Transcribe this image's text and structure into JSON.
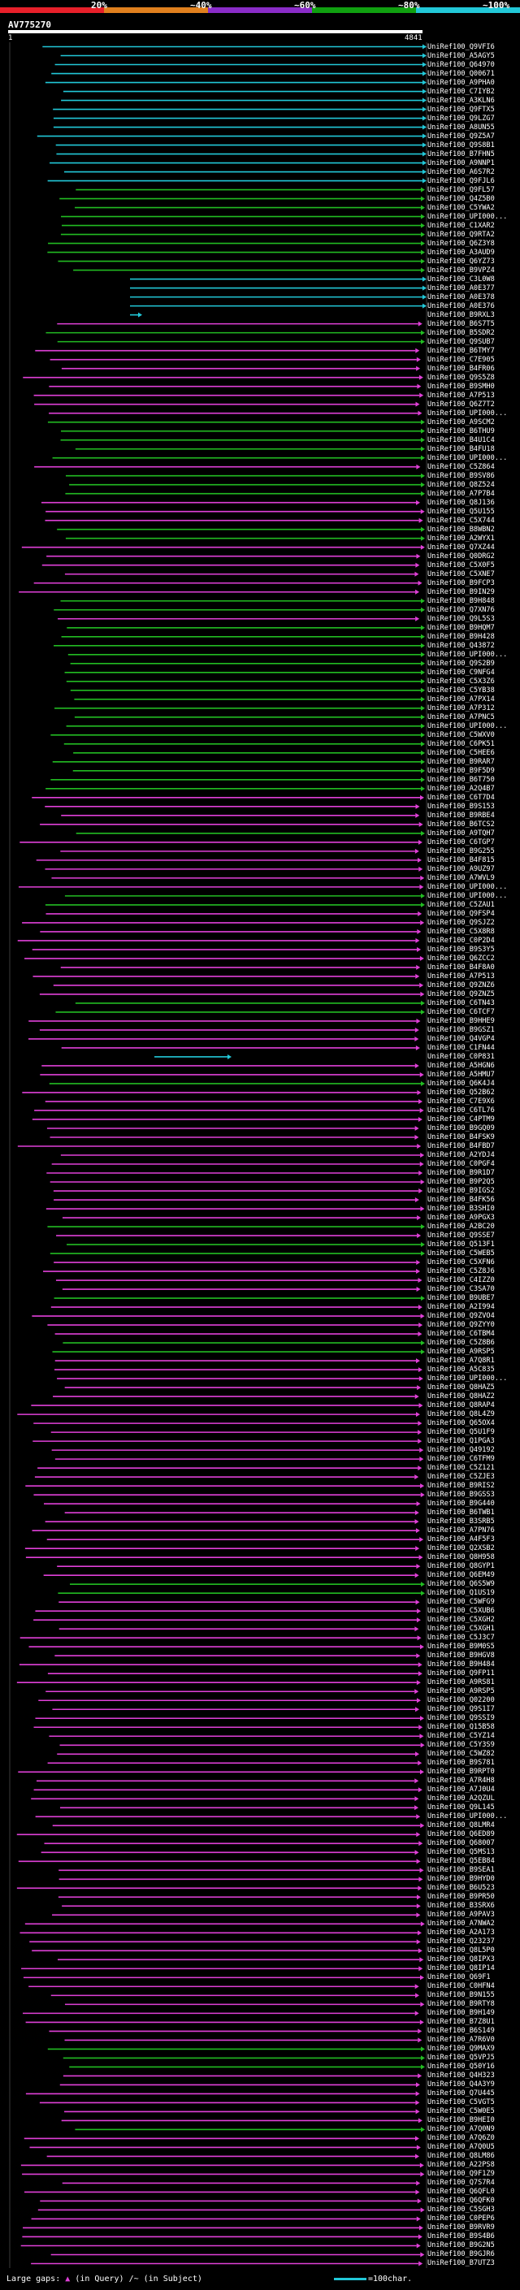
{
  "legend": {
    "labels": [
      "20%",
      "~40%",
      "~60%",
      "~80%",
      "~100%"
    ],
    "colors": [
      "#e8202a",
      "#e0801e",
      "#8a2cc8",
      "#10a010",
      "#22c8d8"
    ]
  },
  "query": {
    "title": "AV775270",
    "start": "1",
    "end": "4841"
  },
  "colors": {
    "pink": "#e040d8",
    "green": "#22bb22",
    "cyan": "#22c8d8",
    "guide": "#3a3a3a"
  },
  "hits": [
    "UniRef100_Q9VFI6",
    "UniRef100_A5AGY5",
    "UniRef100_Q64970",
    "UniRef100_Q00671",
    "UniRef100_A9PHA0",
    "UniRef100_C7IYB2",
    "UniRef100_A3KLN6",
    "UniRef100_Q9FTX5",
    "UniRef100_Q9LZG7",
    "UniRef100_A8UN55",
    "UniRef100_Q9Z5A7",
    "UniRef100_Q9S8B1",
    "UniRef100_B7FHN5",
    "UniRef100_A9NNP1",
    "UniRef100_A6S7R2",
    "UniRef100_Q9FJL6",
    "UniRef100_Q9FL57",
    "UniRef100_Q4Z5B0",
    "UniRef100_C5YWA2",
    "UniRef100_UPI000...",
    "UniRef100_C1XAR2",
    "UniRef100_Q9RTA2",
    "UniRef100_Q6Z3Y8",
    "UniRef100_A3AUD9",
    "UniRef100_Q6YZ73",
    "UniRef100_B9VPZ4",
    "UniRef100_C3L0W8",
    "UniRef100_A0E377",
    "UniRef100_A0E378",
    "UniRef100_A0E376",
    "UniRef100_B9RXL3",
    "UniRef100_B6S7T5",
    "UniRef100_B5SDR2",
    "UniRef100_Q9SUB7",
    "UniRef100_B6TMY7",
    "UniRef100_C7E905",
    "UniRef100_B4FR06",
    "UniRef100_Q9S5Z8",
    "UniRef100_B9SMH0",
    "UniRef100_A7P513",
    "UniRef100_Q6Z7T2",
    "UniRef100_UPI000...",
    "UniRef100_A9SCM2",
    "UniRef100_B6THU9",
    "UniRef100_B4U1C4",
    "UniRef100_B4FU18",
    "UniRef100_UPI000...",
    "UniRef100_C5Z864",
    "UniRef100_B9SV86",
    "UniRef100_Q8Z524",
    "UniRef100_A7P7B4",
    "UniRef100_Q8J136",
    "UniRef100_Q5U155",
    "UniRef100_C5X744",
    "UniRef100_B8WBN2",
    "UniRef100_A2WYX1",
    "UniRef100_Q7XZ44",
    "UniRef100_Q0DRG2",
    "UniRef100_C5X0F5",
    "UniRef100_C5XNE7",
    "UniRef100_B9FCP3",
    "UniRef100_B9IN29",
    "UniRef100_B9H848",
    "UniRef100_Q7XN76",
    "UniRef100_Q9L5S3",
    "UniRef100_B9HQM7",
    "UniRef100_B9H428",
    "UniRef100_Q43872",
    "UniRef100_UPI000...",
    "UniRef100_Q9S2B9",
    "UniRef100_C9NFG4",
    "UniRef100_C5X3Z6",
    "UniRef100_C5YB38",
    "UniRef100_A7PX14",
    "UniRef100_A7P312",
    "UniRef100_A7PNC5",
    "UniRef100_UPI000...",
    "UniRef100_C5WXV0",
    "UniRef100_C6PK51",
    "UniRef100_C5HEE6",
    "UniRef100_B9RAR7",
    "UniRef100_B9F5D9",
    "UniRef100_B6T750",
    "UniRef100_A2Q4B7",
    "UniRef100_C6T7D4",
    "UniRef100_B9S153",
    "UniRef100_B9RBE4",
    "UniRef100_B6TCS2",
    "UniRef100_A9TQH7",
    "UniRef100_C6TGP7",
    "UniRef100_B9G255",
    "UniRef100_B4F815",
    "UniRef100_A9UZ97",
    "UniRef100_A7WVL9",
    "UniRef100_UPI000...",
    "UniRef100_UPI000...",
    "UniRef100_C5ZAU1",
    "UniRef100_Q9FSP4",
    "UniRef100_Q9SJZ2",
    "UniRef100_C5X8R8",
    "UniRef100_C0P2D4",
    "UniRef100_B9S3Y5",
    "UniRef100_Q6ZCC2",
    "UniRef100_B4F8A0",
    "UniRef100_A7P513",
    "UniRef100_Q9ZNZ6",
    "UniRef100_Q9ZNZ5",
    "UniRef100_C6TN43",
    "UniRef100_C6TCF7",
    "UniRef100_B9HHE9",
    "UniRef100_B9GSZ1",
    "UniRef100_Q4VGP4",
    "UniRef100_C1FN44",
    "UniRef100_C0P831",
    "UniRef100_A5HGN6",
    "UniRef100_A5HMU7",
    "UniRef100_Q6K4J4",
    "UniRef100_Q52B62",
    "UniRef100_C7E9X6",
    "UniRef100_C6TL76",
    "UniRef100_C4PTM9",
    "UniRef100_B9GQ09",
    "UniRef100_B4FSK9",
    "UniRef100_B4FBD7",
    "UniRef100_A2YDJ4",
    "UniRef100_C0PGF4",
    "UniRef100_B9R1D7",
    "UniRef100_B9P2Q5",
    "UniRef100_B9IGS2",
    "UniRef100_B4FK56",
    "UniRef100_B3SHI0",
    "UniRef100_A9PGX3",
    "UniRef100_A2BC20",
    "UniRef100_Q9SSE7",
    "UniRef100_Q513F1",
    "UniRef100_C5WEB5",
    "UniRef100_C5XFN6",
    "UniRef100_C5Z8J6",
    "UniRef100_C4IZZ0",
    "UniRef100_C3SA70",
    "UniRef100_B9UBE7",
    "UniRef100_A2I994",
    "UniRef100_Q9ZVO4",
    "UniRef100_Q9ZYY0",
    "UniRef100_C6TBM4",
    "UniRef100_C5Z8B6",
    "UniRef100_A9RSP5",
    "UniRef100_A7Q8R1",
    "UniRef100_A5C835",
    "UniRef100_UPI000...",
    "UniRef100_Q8HAZ5",
    "UniRef100_Q8HAZ2",
    "UniRef100_Q8RAP4",
    "UniRef100_Q8L4Z9",
    "UniRef100_Q65OX4",
    "UniRef100_Q5U1F9",
    "UniRef100_Q1PGA3",
    "UniRef100_Q49192",
    "UniRef100_C6TFM9",
    "UniRef100_C5Z121",
    "UniRef100_C5ZJE3",
    "UniRef100_B9RIS2",
    "UniRef100_B9GSS3",
    "UniRef100_B9G440",
    "UniRef100_B6TWB1",
    "UniRef100_B3SRB5",
    "UniRef100_A7PN76",
    "UniRef100_A4F5F3",
    "UniRef100_Q2XSB2",
    "UniRef100_Q8H958",
    "UniRef100_Q8GYP1",
    "UniRef100_Q6EM49",
    "UniRef100_Q6S5W9",
    "UniRef100_Q1US19",
    "UniRef100_C5WFG9",
    "UniRef100_C5XUB6",
    "UniRef100_C5XGH2",
    "UniRef100_C5XGH1",
    "UniRef100_C5J3C7",
    "UniRef100_B9M0S5",
    "UniRef100_B9HGV8",
    "UniRef100_B9H484",
    "UniRef100_Q9FP11",
    "UniRef100_A9RS81",
    "UniRef100_A9RSP5",
    "UniRef100_Q02200",
    "UniRef100_Q9S1I7",
    "UniRef100_Q9SSI9",
    "UniRef100_Q15B58",
    "UniRef100_C5YZ14",
    "UniRef100_C5Y3S9",
    "UniRef100_C5WZ82",
    "UniRef100_B9S781",
    "UniRef100_B9RPT0",
    "UniRef100_A7R4H8",
    "UniRef100_A7J0U4",
    "UniRef100_A2QZUL",
    "UniRef100_Q9L145",
    "UniRef100_UPI000...",
    "UniRef100_Q8LMR4",
    "UniRef100_Q6ED89",
    "UniRef100_Q68007",
    "UniRef100_Q5MS13",
    "UniRef100_Q5EB84",
    "UniRef100_B9SEA1",
    "UniRef100_B9HYD0",
    "UniRef100_B6U523",
    "UniRef100_B9PR50",
    "UniRef100_B3SRX6",
    "UniRef100_A9PAV3",
    "UniRef100_A7NWA2",
    "UniRef100_A2A173",
    "UniRef100_Q23237",
    "UniRef100_Q8L5P0",
    "UniRef100_Q8IPX3",
    "UniRef100_Q8IP14",
    "UniRef100_Q69F1",
    "UniRef100_C0HFN4",
    "UniRef100_B9N155",
    "UniRef100_B9RTY8",
    "UniRef100_B9H149",
    "UniRef100_B7Z8U1",
    "UniRef100_B6S149",
    "UniRef100_A7R6V0",
    "UniRef100_Q9MAX9",
    "UniRef100_Q5VPJ5",
    "UniRef100_Q50Y16",
    "UniRef100_Q4H323",
    "UniRef100_Q4A3Y9",
    "UniRef100_Q7U445",
    "UniRef100_C5VGT5",
    "UniRef100_C5W0E5",
    "UniRef100_B9HEI0",
    "UniRef100_A7Q0N9",
    "UniRef100_A7Q6Z0",
    "UniRef100_A7Q0U5",
    "UniRef100_Q8LM86",
    "UniRef100_A22PS8",
    "UniRef100_Q9F1Z9",
    "UniRef100_Q7S7R4",
    "UniRef100_Q6QFL0",
    "UniRef100_Q6QFK0",
    "UniRef100_C5SGH3",
    "UniRef100_C0PEP6",
    "UniRef100_B9RVR9",
    "UniRef100_B9S4B6",
    "UniRef100_B9G2N5",
    "UniRef100_B9GJR6",
    "UniRef100_B7UTZ3"
  ],
  "footer": {
    "label": "Large gaps:",
    "query_gap": "(in Query)",
    "subject_gap": "/~ (in Subject)",
    "scale_text": "=100char."
  }
}
